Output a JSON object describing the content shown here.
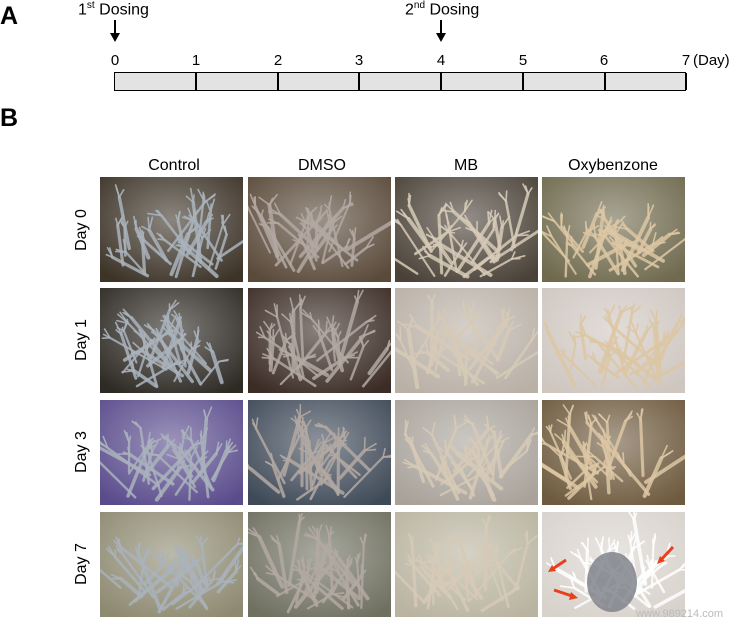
{
  "panel_a": {
    "letter": "A",
    "first_dosing": {
      "prefix": "1",
      "sup": "st",
      "suffix": " Dosing"
    },
    "second_dosing": {
      "prefix": "2",
      "sup": "nd",
      "suffix": " Dosing"
    },
    "tick_labels": [
      "0",
      "1",
      "2",
      "3",
      "4",
      "5",
      "6",
      "7"
    ],
    "unit_label": "(Day)"
  },
  "panel_b": {
    "letter": "B",
    "columns": [
      "Control",
      "DMSO",
      "MB",
      "Oxybenzone"
    ],
    "rows": [
      "Day 0",
      "Day  1",
      "Day 3",
      "Day 7"
    ]
  },
  "colors": {
    "timeline_fill": "#e3e3e3",
    "arrow_red": "#e8401c",
    "control_tint": "#9aa3ad",
    "dmso_tint": "#a39a93",
    "mb_tint": "#c9bba6",
    "oxy_tint": "#d6c3a0"
  },
  "watermark": "www.989214.com"
}
